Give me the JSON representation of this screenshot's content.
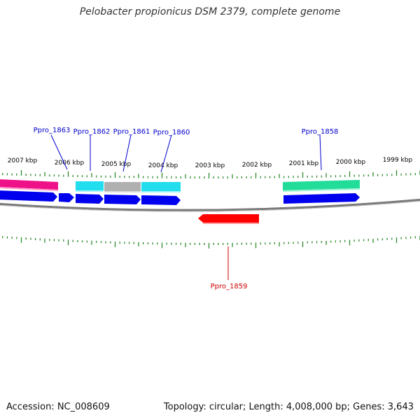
{
  "title": "Pelobacter propionicus DSM 2379, complete genome",
  "accession_text": "Accession: NC_008609",
  "summary_text": "Topology: circular; Length: 4,008,000 bp; Genes: 3,643",
  "kbp_labels": [
    "2007 kbp",
    "2006 kbp",
    "2005 kbp",
    "2004 kbp",
    "2003 kbp",
    "2002 kbp",
    "2001 kbp",
    "2000 kbp",
    "1999 kbp"
  ],
  "gene_labels": [
    {
      "name": "Ppro_1863",
      "color": "#0000cc",
      "strand": "plus"
    },
    {
      "name": "Ppro_1862",
      "color": "#0000cc",
      "strand": "plus"
    },
    {
      "name": "Ppro_1861",
      "color": "#0000cc",
      "strand": "plus"
    },
    {
      "name": "Ppro_1860",
      "color": "#0000cc",
      "strand": "plus"
    },
    {
      "name": "Ppro_1858",
      "color": "#0000cc",
      "strand": "plus"
    },
    {
      "name": "Ppro_1859",
      "color": "#cc0000",
      "strand": "minus"
    }
  ],
  "colors": {
    "tick": "#2e8b2e",
    "backbone": "#808080",
    "cds_forward": "#0000ee",
    "cds_reverse": "#ff0000",
    "feature_magenta": "#ee1188",
    "feature_cyan": "#22ddee",
    "feature_gray": "#b0b0b0",
    "feature_green": "#22dd99"
  }
}
